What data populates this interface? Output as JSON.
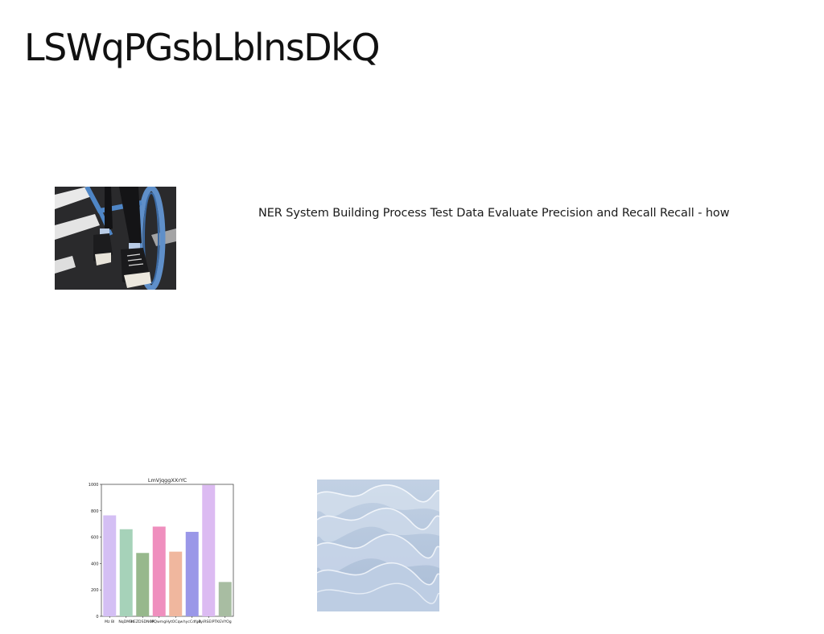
{
  "title": "LSWqPGsbLblnsDkQ",
  "body_text": "NER System Building Process Test Data Evaluate Precision and Recall Recall - how",
  "images": {
    "photo": {
      "icon": "bicycle-sneakers-photo"
    },
    "texture": {
      "icon": "wave-texture-image"
    }
  },
  "chart_data": {
    "type": "bar",
    "title": "LmVjqggXXrYC",
    "categories": [
      "Mz Bl",
      "NqDMBt",
      "HEZDSDNOX",
      "ePQwmgH",
      "ytOCqw",
      "hycCdfgB",
      "dyiRSEIPTK",
      "GVYOg"
    ],
    "values": [
      765,
      660,
      480,
      680,
      490,
      640,
      995,
      260
    ],
    "colors": [
      "#d4bff4",
      "#a6d2b9",
      "#97b88c",
      "#ef8fbe",
      "#f0b79e",
      "#9a97e8",
      "#dcbbf2",
      "#a8bda2"
    ],
    "ylim": [
      0,
      1000
    ],
    "yticks": [
      0,
      200,
      400,
      600,
      800,
      1000
    ],
    "xlabel": "",
    "ylabel": "",
    "grid": false
  }
}
